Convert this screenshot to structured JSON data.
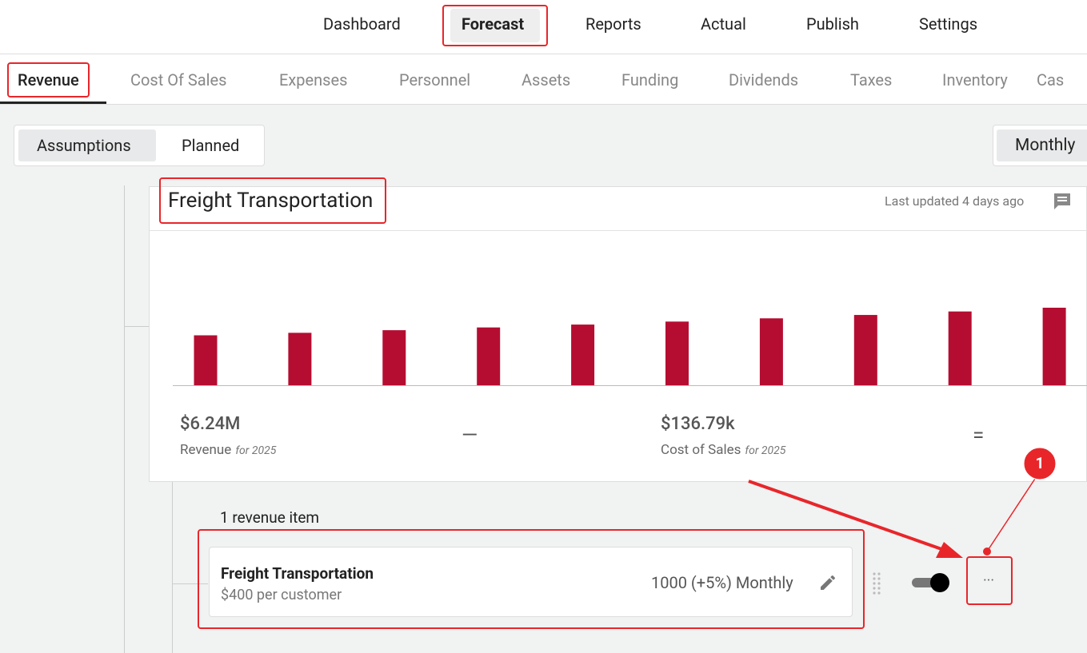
{
  "nav": {
    "items": [
      "Dashboard",
      "Forecast",
      "Reports",
      "Actual",
      "Publish",
      "Settings"
    ]
  },
  "tabs": {
    "items": [
      "Revenue",
      "Cost Of Sales",
      "Expenses",
      "Personnel",
      "Assets",
      "Funding",
      "Dividends",
      "Taxes",
      "Inventory",
      "Cas"
    ]
  },
  "view_toggle": {
    "items": [
      "Assumptions",
      "Planned"
    ]
  },
  "period": "Monthly",
  "card": {
    "title": "Freight Transportation",
    "updated": "Last updated 4 days ago",
    "chart": {
      "type": "bar",
      "color": "#b50d31",
      "values": [
        400000,
        420000,
        441000,
        463000,
        486000,
        510000,
        536000,
        563000,
        591000,
        621000
      ]
    },
    "stats": [
      {
        "value": "$6.24M",
        "label": "Revenue",
        "period": "for 2025"
      },
      {
        "value": "$136.79k",
        "label": "Cost of Sales",
        "period": "for 2025"
      }
    ],
    "operators": [
      "—",
      "="
    ]
  },
  "summary": "1 revenue item",
  "item": {
    "name": "Freight Transportation",
    "detail": "$400 per customer",
    "rate": "1000 (+5%) Monthly"
  },
  "annotation": "1"
}
